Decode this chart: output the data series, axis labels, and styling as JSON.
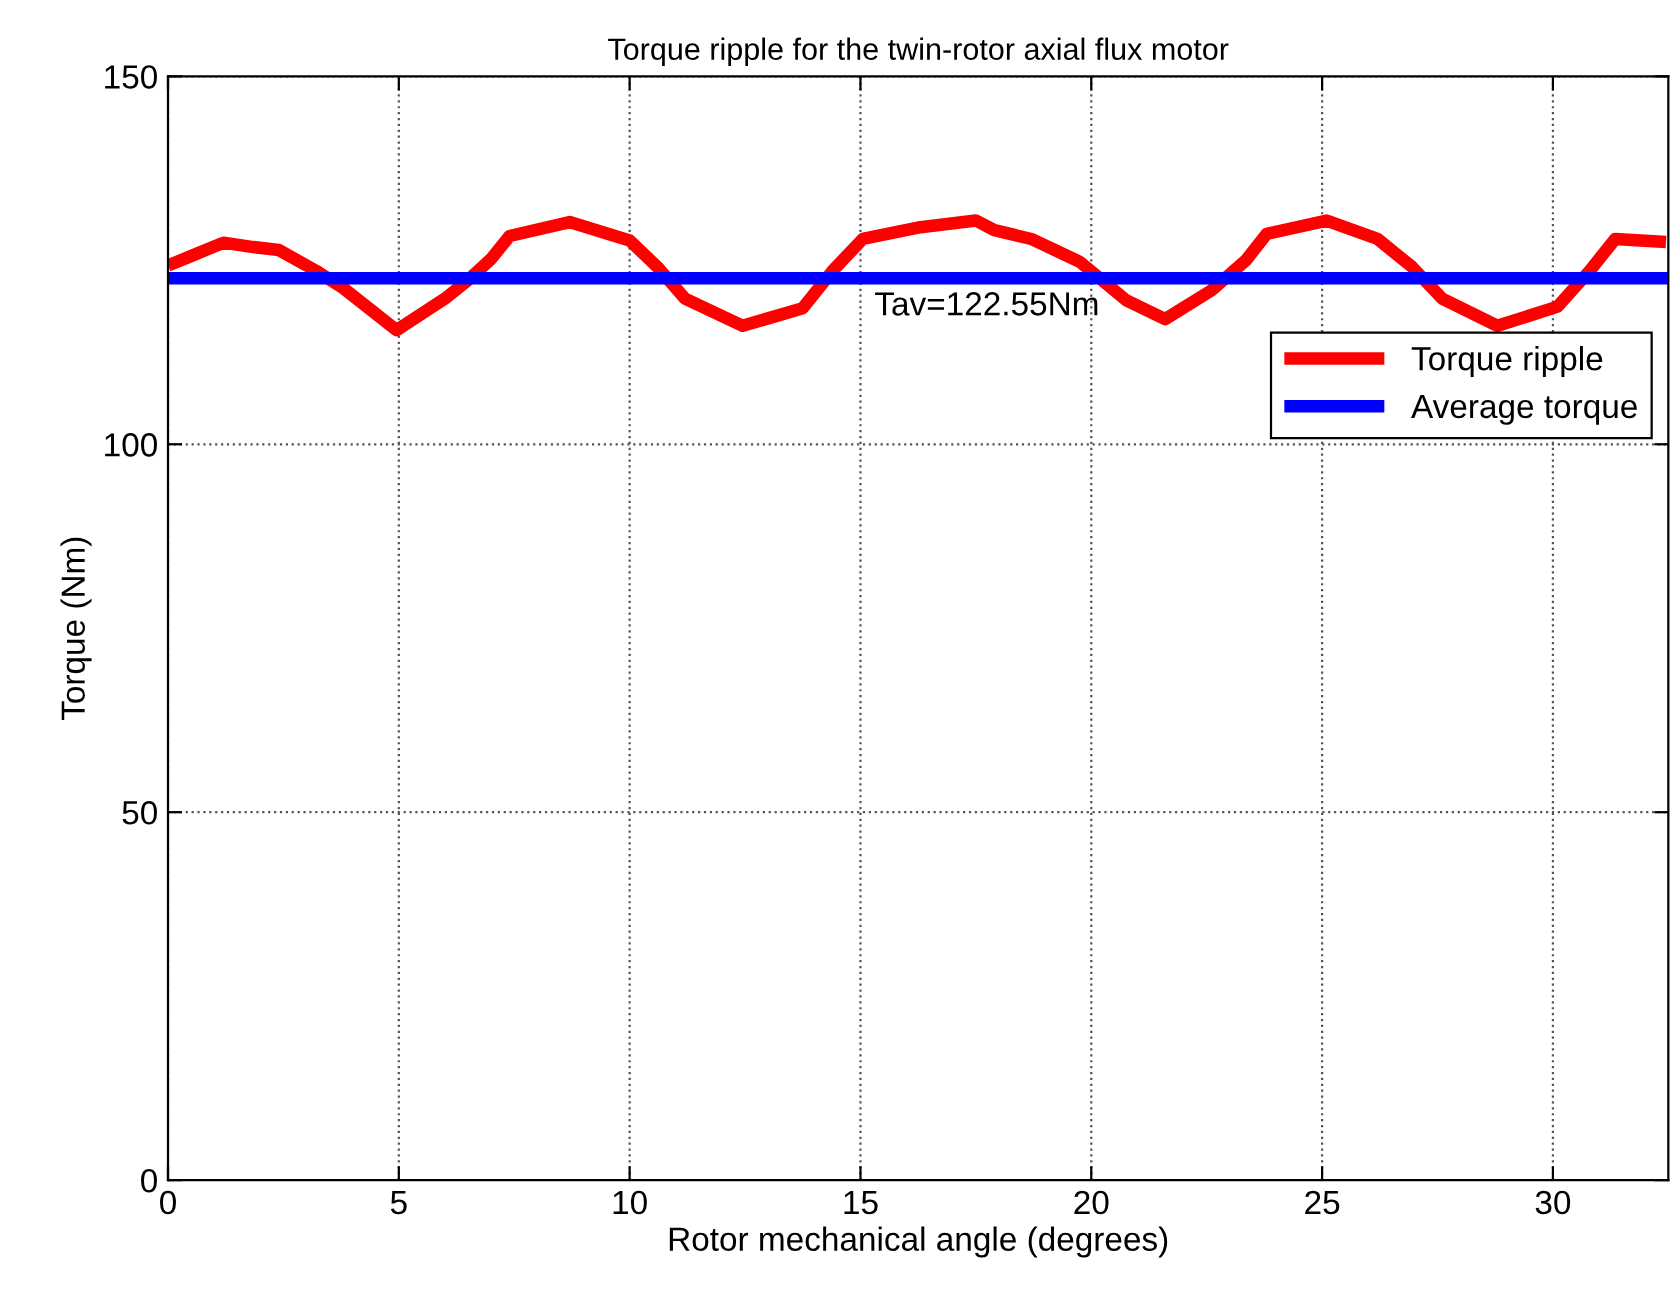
{
  "chart_data": {
    "type": "line",
    "title": "Torque ripple for the twin-rotor axial flux motor",
    "xlabel": "Rotor mechanical angle (degrees)",
    "ylabel": "Torque (Nm)",
    "xlim": [
      0,
      32.5
    ],
    "xticks": [
      0,
      5,
      10,
      15,
      20,
      25,
      30
    ],
    "ylim": [
      0,
      150
    ],
    "yticks": [
      0,
      50,
      100,
      150
    ],
    "grid": true,
    "legend": "right",
    "line_style": "solid",
    "marker": "none",
    "series": [
      {
        "name": "Torque ripple",
        "color": "#ff0000",
        "x": [
          0,
          0.47,
          1.2,
          1.85,
          2.4,
          3.2,
          3.8,
          4.95,
          6.0,
          6.5,
          7.0,
          7.4,
          8.7,
          10.0,
          10.6,
          11.2,
          12.45,
          13.75,
          14.4,
          15.05,
          16.3,
          17.5,
          17.9,
          18.7,
          19.75,
          20.75,
          21.6,
          22.6,
          23.35,
          23.8,
          25.1,
          26.2,
          26.95,
          27.6,
          28.8,
          30.1,
          30.8,
          31.35,
          32.45
        ],
        "values": [
          124.3,
          125.5,
          127.4,
          126.8,
          126.4,
          123.6,
          121.2,
          115.5,
          119.8,
          122.3,
          125.2,
          128.3,
          130.2,
          127.7,
          124.1,
          119.8,
          116.1,
          118.5,
          123.6,
          127.9,
          129.5,
          130.4,
          129.1,
          127.9,
          124.8,
          119.6,
          117.0,
          120.9,
          125.0,
          128.6,
          130.4,
          127.9,
          124.1,
          119.8,
          116.1,
          118.7,
          123.6,
          127.9,
          127.5
        ]
      },
      {
        "name": "Average torque",
        "color": "#0000ff",
        "x": [
          0,
          32.5
        ],
        "values": [
          122.55,
          122.55
        ]
      }
    ],
    "annotations": [
      "Tav=122.55Nm"
    ]
  }
}
